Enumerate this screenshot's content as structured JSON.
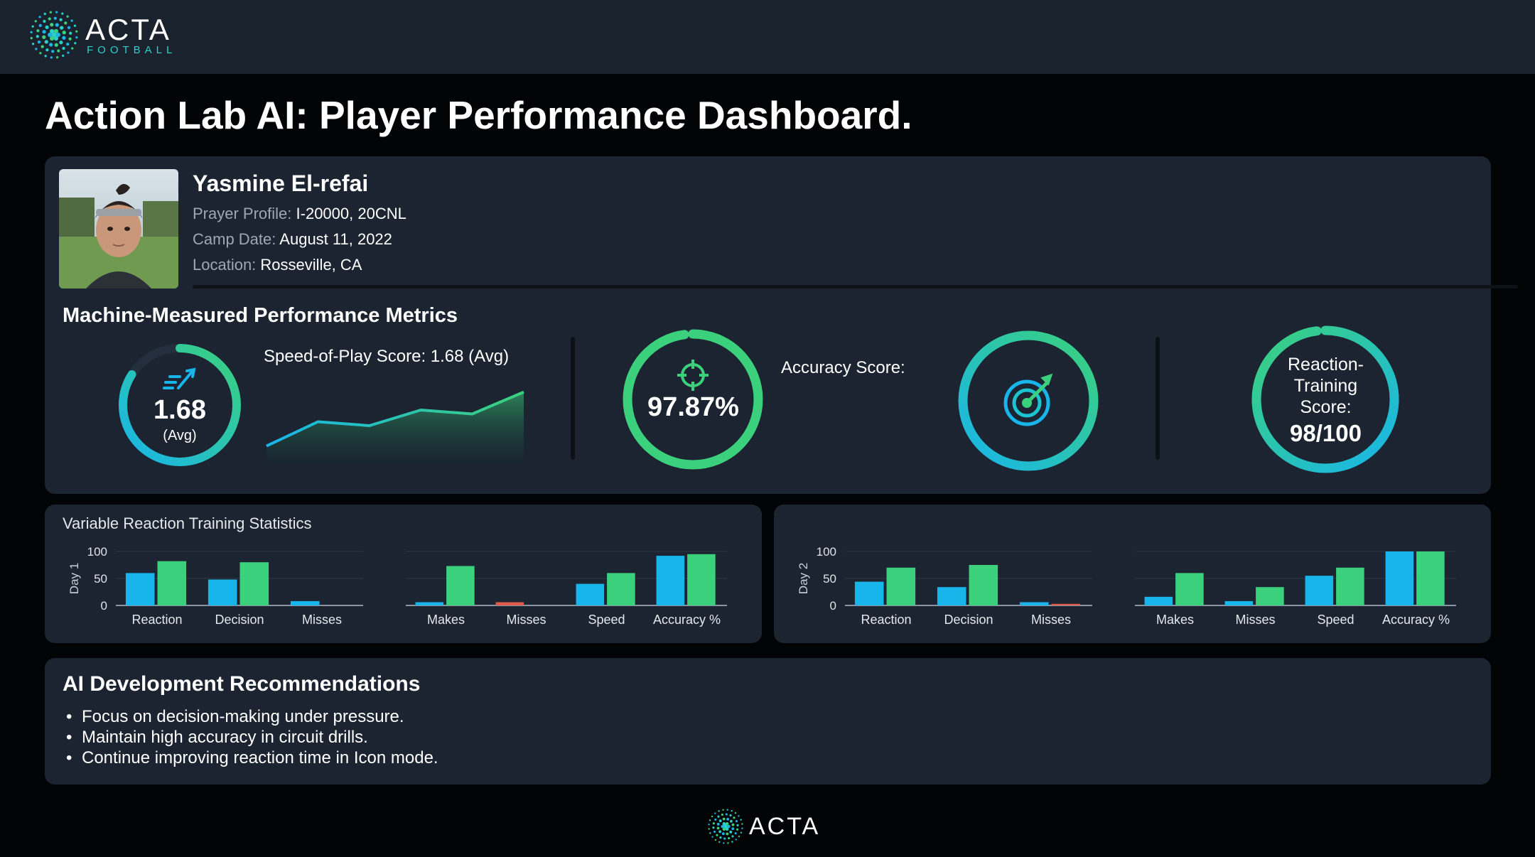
{
  "brand": {
    "name": "ACTA",
    "sub": "FOOTBALL",
    "footer_name": "ACTA",
    "colors": {
      "accent_green": "#3bd17c",
      "accent_blue": "#18b5ea",
      "accent_red": "#e05a4a",
      "background": "#020304",
      "panel": "#1b2430"
    }
  },
  "page": {
    "title": "Action Lab AI: Player Performance Dashboard."
  },
  "player": {
    "name": "Yasmine El-refai",
    "profile_label": "Prayer Profile:",
    "profile_value": "I-20000, 20CNL",
    "camp_label": "Camp Date:",
    "camp_value": "August 11, 2022",
    "location_label": "Location:",
    "location_value": "Rosseville, CA"
  },
  "metrics": {
    "title": "Machine-Measured Performance Metrics",
    "speed": {
      "value": "1.68",
      "unit": "(Avg)",
      "label": "Speed-of-Play Score: 1.68 (Avg)",
      "icon": "speed-icon",
      "gauge_fraction": 0.84,
      "trend": [
        0.14,
        0.45,
        0.4,
        0.6,
        0.55,
        0.83
      ]
    },
    "accuracy": {
      "value": "97.87%",
      "label": "Accuracy Score:",
      "icon": "crosshair-icon",
      "target_icon": "target-icon",
      "gauge_fraction": 0.9787
    },
    "reaction": {
      "label_line1": "Reaction-",
      "label_line2": "Training",
      "label_line3": "Score:",
      "value": "98/100",
      "gauge_fraction": 0.98
    }
  },
  "stats": {
    "title": "Variable Reaction Training Statistics",
    "y_ticks": [
      "100",
      "50",
      "0"
    ],
    "day1_label": "Day 1",
    "day2_label": "Day 2"
  },
  "chart_data": [
    {
      "type": "bar",
      "name": "Day 1 (left)",
      "categories": [
        "Reaction",
        "Decision",
        "Misses"
      ],
      "series": [
        {
          "color": "#18b5ea",
          "values": [
            60,
            48,
            8
          ]
        },
        {
          "color": "#3bd17c",
          "values": [
            82,
            80,
            0
          ]
        }
      ],
      "ylabel": "Day 1",
      "ylim": [
        0,
        100
      ]
    },
    {
      "type": "bar",
      "name": "Day 1 (right)",
      "categories": [
        "Makes",
        "Misses",
        "Speed",
        "Accuracy %"
      ],
      "series": [
        {
          "color": "#18b5ea",
          "values": [
            6,
            6,
            40,
            92
          ]
        },
        {
          "color": "#3bd17c",
          "values": [
            73,
            0,
            60,
            95
          ]
        }
      ],
      "ylim": [
        0,
        100
      ]
    },
    {
      "type": "bar",
      "name": "Day 2 (left)",
      "categories": [
        "Reaction",
        "Decision",
        "Misses"
      ],
      "series": [
        {
          "color": "#18b5ea",
          "values": [
            44,
            34,
            6
          ]
        },
        {
          "color": "#3bd17c",
          "values": [
            70,
            75,
            3
          ]
        }
      ],
      "ylabel": "Day 2",
      "ylim": [
        0,
        100
      ]
    },
    {
      "type": "bar",
      "name": "Day 2 (right)",
      "categories": [
        "Makes",
        "Misses",
        "Speed",
        "Accuracy %"
      ],
      "series": [
        {
          "color": "#18b5ea",
          "values": [
            16,
            8,
            55,
            100
          ]
        },
        {
          "color": "#3bd17c",
          "values": [
            60,
            34,
            70,
            100
          ]
        }
      ],
      "ylim": [
        0,
        100
      ]
    }
  ],
  "recommendations": {
    "title": "AI Development Recommendations",
    "items": [
      "Focus on decision-making under pressure.",
      "Maintain high accuracy in circuit drills.",
      "Continue improving reaction time in Icon mode."
    ]
  }
}
